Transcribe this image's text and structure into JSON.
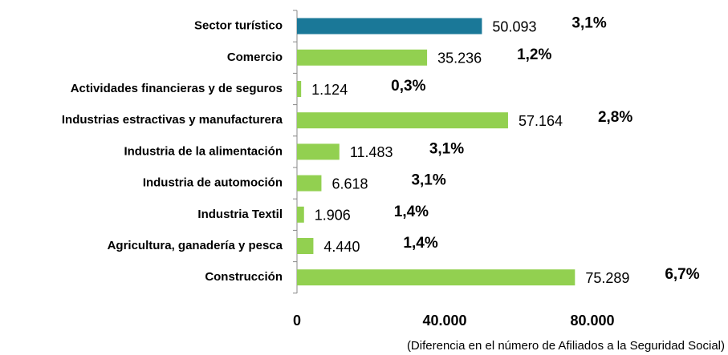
{
  "chart_data": {
    "type": "bar",
    "orientation": "horizontal",
    "categories": [
      "Sector turístico",
      "Comercio",
      "Actividades financieras y de seguros",
      "Industrias estractivas y manufacturera",
      "Industria de la alimentación",
      "Industria de automoción",
      "Industria Textil",
      "Agricultura, ganadería y pesca",
      "Construcción"
    ],
    "values": [
      50093,
      35236,
      1124,
      57164,
      11483,
      6618,
      1906,
      4440,
      75289
    ],
    "value_labels": [
      "50.093",
      "35.236",
      "1.124",
      "57.164",
      "11.483",
      "6.618",
      "1.906",
      "4.440",
      "75.289"
    ],
    "percent_labels": [
      "3,1%",
      "1,2%",
      "0,3%",
      "2,8%",
      "3,1%",
      "3,1%",
      "1,4%",
      "1,4%",
      "6,7%"
    ],
    "colors": [
      "#1a7898",
      "#92d050",
      "#92d050",
      "#92d050",
      "#92d050",
      "#92d050",
      "#92d050",
      "#92d050",
      "#92d050"
    ],
    "xlim": [
      0,
      80000
    ],
    "xticks": [
      0,
      {
        "value": 40000,
        "label": "40.000"
      },
      {
        "value": 80000,
        "label": "80.000"
      }
    ],
    "x_label": "(Diferencia en el número de Afiliados a la Seguridad Social)"
  }
}
